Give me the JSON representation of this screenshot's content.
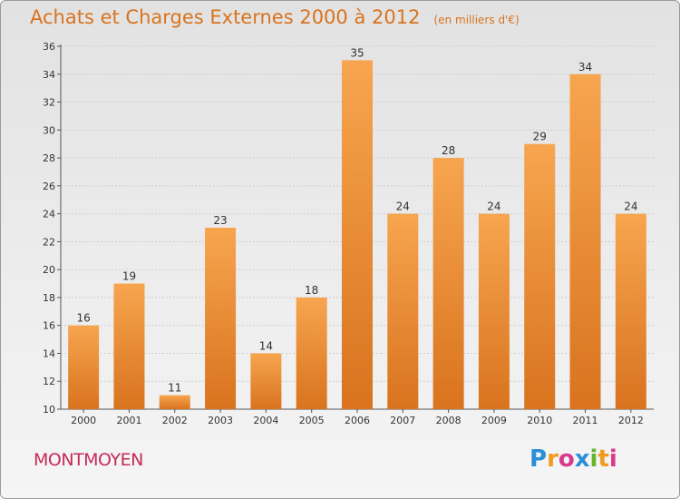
{
  "header": {
    "title": "Achats et Charges Externes 2000 à 2012",
    "subtitle": "(en milliers d'€)"
  },
  "footer": {
    "commune": "MONTMOYEN",
    "logo": [
      {
        "char": "P",
        "color": "#2a8fd6"
      },
      {
        "char": "r",
        "color": "#f29a1f"
      },
      {
        "char": "o",
        "color": "#d93a8f"
      },
      {
        "char": "x",
        "color": "#2a8fd6"
      },
      {
        "char": "i",
        "color": "#6ab42d"
      },
      {
        "char": "t",
        "color": "#f29a1f"
      },
      {
        "char": "i",
        "color": "#d93a8f"
      }
    ]
  },
  "chart_data": {
    "type": "bar",
    "categories": [
      "2000",
      "2001",
      "2002",
      "2003",
      "2004",
      "2005",
      "2006",
      "2007",
      "2008",
      "2009",
      "2010",
      "2011",
      "2012"
    ],
    "values": [
      16,
      19,
      11,
      23,
      14,
      18,
      35,
      24,
      28,
      24,
      29,
      34,
      24
    ],
    "ylim": [
      10,
      36
    ],
    "yticks": [
      10,
      12,
      14,
      16,
      18,
      20,
      22,
      24,
      26,
      28,
      30,
      32,
      34,
      36
    ],
    "grid": true,
    "bar_color_top": "#f7a54f",
    "bar_color_bottom": "#d9731e"
  }
}
